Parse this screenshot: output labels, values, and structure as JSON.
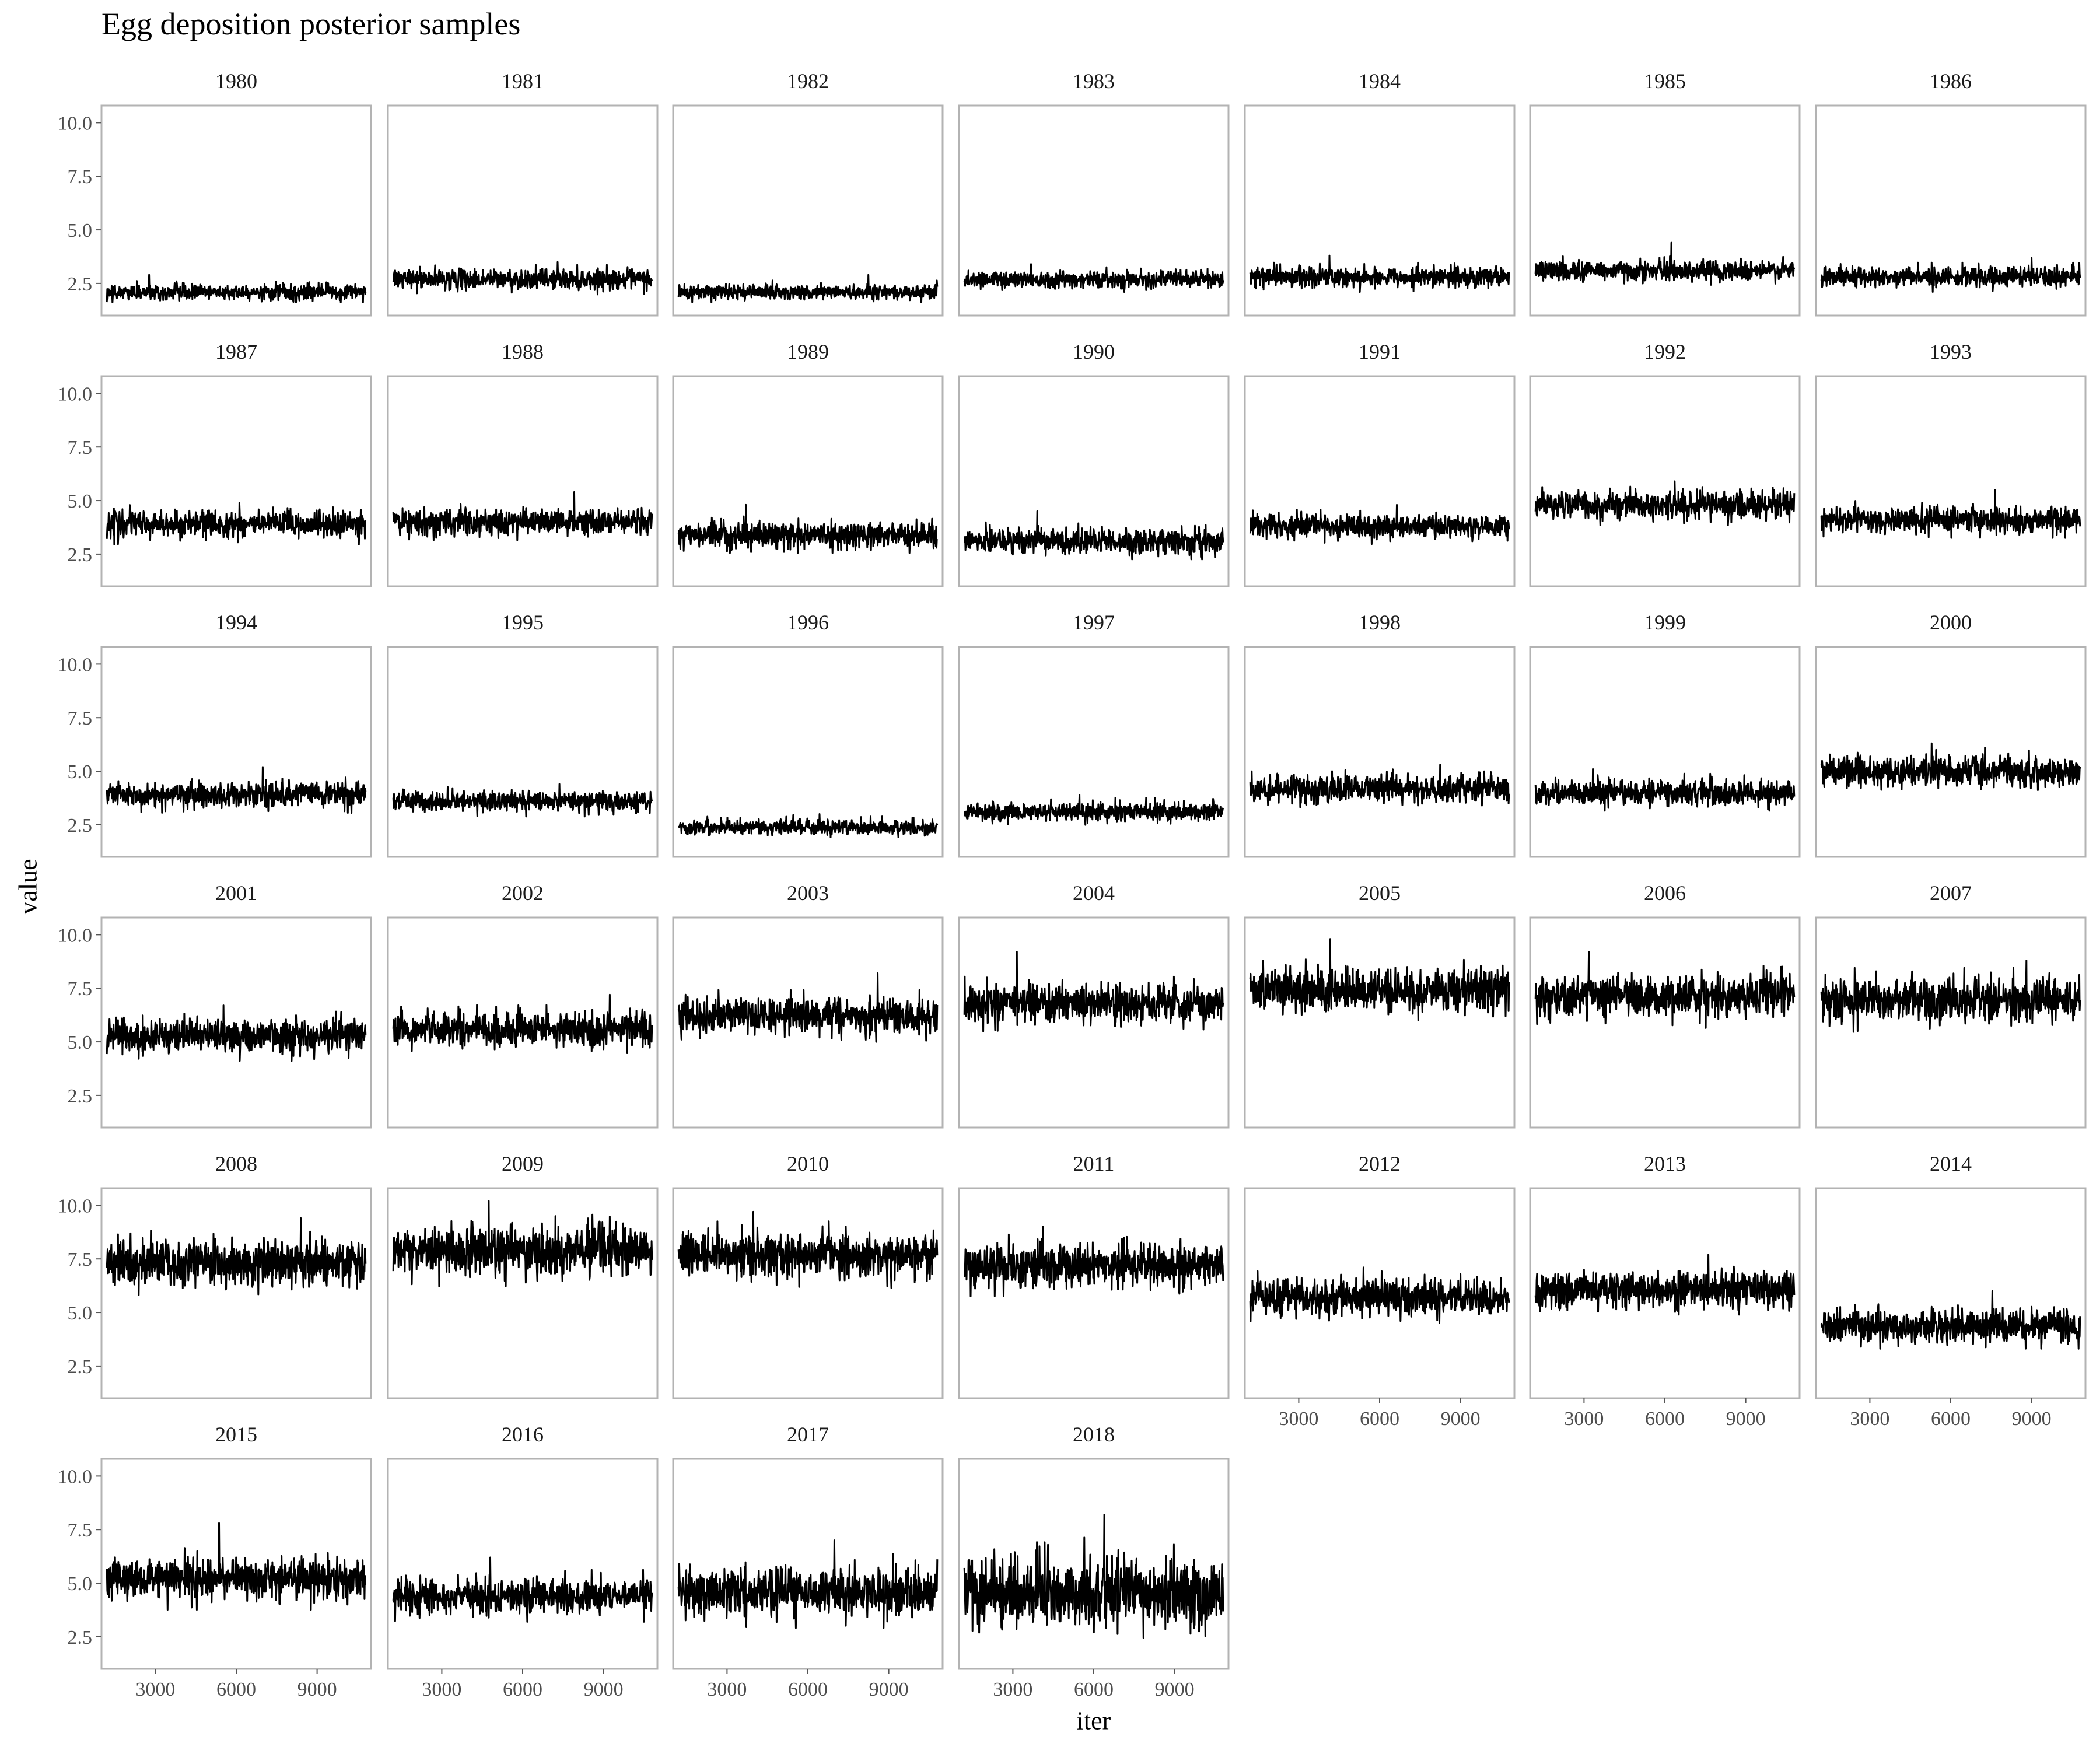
{
  "chart_data": {
    "type": "line",
    "title": "Egg deposition posterior samples",
    "xlabel": "iter",
    "ylabel": "value",
    "xlim": [
      1000,
      11000
    ],
    "ylim": [
      1,
      10.8
    ],
    "x_ticks": [
      3000,
      6000,
      9000
    ],
    "y_ticks": [
      2.5,
      5.0,
      7.5,
      10.0
    ],
    "y_tick_labels": [
      "2.5",
      "5.0",
      "7.5",
      "10.0"
    ],
    "layout": "facet-wrap-7-columns",
    "grid": false,
    "line_color": "#000000",
    "panels": [
      {
        "label": "1980",
        "mean": 2.1,
        "low": 1.7,
        "high": 2.6,
        "max": 2.9
      },
      {
        "label": "1981",
        "mean": 2.7,
        "low": 2.1,
        "high": 3.3,
        "max": 3.5
      },
      {
        "label": "1982",
        "mean": 2.1,
        "low": 1.7,
        "high": 2.6,
        "max": 2.9
      },
      {
        "label": "1983",
        "mean": 2.7,
        "low": 2.2,
        "high": 3.2,
        "max": 3.4
      },
      {
        "label": "1984",
        "mean": 2.8,
        "low": 2.2,
        "high": 3.4,
        "max": 3.8
      },
      {
        "label": "1985",
        "mean": 3.1,
        "low": 2.5,
        "high": 3.7,
        "max": 4.4
      },
      {
        "label": "1986",
        "mean": 2.8,
        "low": 2.2,
        "high": 3.4,
        "max": 3.7
      },
      {
        "label": "1987",
        "mean": 3.9,
        "low": 3.1,
        "high": 4.7,
        "max": 4.9
      },
      {
        "label": "1988",
        "mean": 4.0,
        "low": 3.3,
        "high": 4.8,
        "max": 5.4
      },
      {
        "label": "1989",
        "mean": 3.4,
        "low": 2.7,
        "high": 4.2,
        "max": 4.8
      },
      {
        "label": "1990",
        "mean": 3.1,
        "low": 2.4,
        "high": 3.9,
        "max": 4.5
      },
      {
        "label": "1991",
        "mean": 3.8,
        "low": 3.1,
        "high": 4.5,
        "max": 4.8
      },
      {
        "label": "1992",
        "mean": 4.8,
        "low": 4.0,
        "high": 5.6,
        "max": 5.9
      },
      {
        "label": "1993",
        "mean": 4.1,
        "low": 3.4,
        "high": 4.9,
        "max": 5.5
      },
      {
        "label": "1994",
        "mean": 3.9,
        "low": 3.2,
        "high": 4.7,
        "max": 5.2
      },
      {
        "label": "1995",
        "mean": 3.6,
        "low": 3.0,
        "high": 4.2,
        "max": 4.4
      },
      {
        "label": "1996",
        "mean": 2.4,
        "low": 2.0,
        "high": 2.9,
        "max": 3.0
      },
      {
        "label": "1997",
        "mean": 3.1,
        "low": 2.6,
        "high": 3.7,
        "max": 3.9
      },
      {
        "label": "1998",
        "mean": 4.2,
        "low": 3.4,
        "high": 5.0,
        "max": 5.3
      },
      {
        "label": "1999",
        "mean": 4.0,
        "low": 3.3,
        "high": 4.8,
        "max": 5.1
      },
      {
        "label": "2000",
        "mean": 5.0,
        "low": 4.2,
        "high": 6.0,
        "max": 6.3
      },
      {
        "label": "2001",
        "mean": 5.3,
        "low": 4.3,
        "high": 6.3,
        "max": 6.7
      },
      {
        "label": "2002",
        "mean": 5.6,
        "low": 4.6,
        "high": 6.6,
        "max": 7.2
      },
      {
        "label": "2003",
        "mean": 6.2,
        "low": 5.2,
        "high": 7.3,
        "max": 8.2
      },
      {
        "label": "2004",
        "mean": 6.8,
        "low": 5.7,
        "high": 8.0,
        "max": 9.2
      },
      {
        "label": "2005",
        "mean": 7.4,
        "low": 6.1,
        "high": 8.7,
        "max": 9.8
      },
      {
        "label": "2006",
        "mean": 7.1,
        "low": 5.8,
        "high": 8.4,
        "max": 9.2
      },
      {
        "label": "2007",
        "mean": 7.0,
        "low": 5.7,
        "high": 8.3,
        "max": 8.8
      },
      {
        "label": "2008",
        "mean": 7.3,
        "low": 6.0,
        "high": 8.7,
        "max": 9.4
      },
      {
        "label": "2009",
        "mean": 7.9,
        "low": 6.5,
        "high": 9.4,
        "max": 10.2
      },
      {
        "label": "2010",
        "mean": 7.7,
        "low": 6.4,
        "high": 9.1,
        "max": 9.7
      },
      {
        "label": "2011",
        "mean": 7.2,
        "low": 6.0,
        "high": 8.5,
        "max": 9.0
      },
      {
        "label": "2012",
        "mean": 5.7,
        "low": 4.6,
        "high": 6.8,
        "max": 7.1
      },
      {
        "label": "2013",
        "mean": 6.1,
        "low": 5.1,
        "high": 7.2,
        "max": 7.7
      },
      {
        "label": "2014",
        "mean": 4.4,
        "low": 3.5,
        "high": 5.5,
        "max": 6.0
      },
      {
        "label": "2015",
        "mean": 5.2,
        "low": 4.0,
        "high": 6.5,
        "max": 7.8
      },
      {
        "label": "2016",
        "mean": 4.4,
        "low": 3.4,
        "high": 5.5,
        "max": 6.2
      },
      {
        "label": "2017",
        "mean": 4.6,
        "low": 3.2,
        "high": 6.2,
        "max": 7.0
      },
      {
        "label": "2018",
        "mean": 4.6,
        "low": 2.8,
        "high": 7.0,
        "max": 8.2
      }
    ]
  }
}
